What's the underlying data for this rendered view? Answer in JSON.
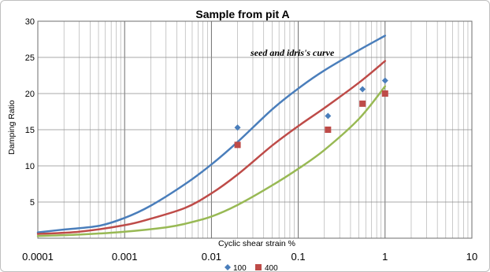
{
  "chart_data": {
    "type": "scatter",
    "title": "Sample from pit A",
    "xlabel": "Cyclic shear strain %",
    "ylabel": "Damping Ratio",
    "x_scale": "log",
    "xlim": [
      0.0001,
      10
    ],
    "ylim": [
      0,
      30
    ],
    "x_ticks": [
      "0.0001",
      "0.001",
      "0.01",
      "0.1",
      "1",
      "10"
    ],
    "y_ticks": [
      "5",
      "10",
      "15",
      "20",
      "25",
      "30"
    ],
    "grid": true,
    "legend_position": "bottom",
    "annotation": "seed and idris's curve",
    "curves": [
      {
        "color": "#4a7ebb",
        "points": [
          [
            0.0001,
            0.8
          ],
          [
            0.0002,
            1.2
          ],
          [
            0.0005,
            1.7
          ],
          [
            0.001,
            2.8
          ],
          [
            0.002,
            4.5
          ],
          [
            0.005,
            7.5
          ],
          [
            0.01,
            10.2
          ],
          [
            0.02,
            13.3
          ],
          [
            0.05,
            17.8
          ],
          [
            0.1,
            20.7
          ],
          [
            0.2,
            23.2
          ],
          [
            0.5,
            26.0
          ],
          [
            1,
            28.0
          ]
        ]
      },
      {
        "color": "#be4b48",
        "points": [
          [
            0.0001,
            0.6
          ],
          [
            0.0003,
            0.9
          ],
          [
            0.001,
            1.8
          ],
          [
            0.002,
            2.7
          ],
          [
            0.005,
            4.2
          ],
          [
            0.01,
            6.2
          ],
          [
            0.02,
            8.8
          ],
          [
            0.05,
            12.8
          ],
          [
            0.1,
            15.5
          ],
          [
            0.2,
            18.0
          ],
          [
            0.5,
            21.5
          ],
          [
            1,
            24.5
          ]
        ]
      },
      {
        "color": "#98b954",
        "points": [
          [
            0.0001,
            0.3
          ],
          [
            0.0003,
            0.5
          ],
          [
            0.001,
            0.9
          ],
          [
            0.003,
            1.5
          ],
          [
            0.005,
            2.0
          ],
          [
            0.01,
            3.0
          ],
          [
            0.02,
            4.6
          ],
          [
            0.05,
            7.3
          ],
          [
            0.1,
            9.6
          ],
          [
            0.2,
            12.2
          ],
          [
            0.5,
            16.5
          ],
          [
            1,
            21.0
          ]
        ]
      }
    ],
    "series": [
      {
        "name": "100",
        "color": "#4a7ebb",
        "marker": "diamond",
        "points": [
          [
            0.02,
            15.3
          ],
          [
            0.22,
            16.9
          ],
          [
            0.55,
            20.6
          ],
          [
            1.0,
            21.8
          ]
        ]
      },
      {
        "name": "400",
        "color": "#be4b48",
        "marker": "square",
        "points": [
          [
            0.02,
            12.9
          ],
          [
            0.22,
            15.0
          ],
          [
            0.55,
            18.6
          ],
          [
            1.0,
            20.0
          ]
        ]
      }
    ]
  }
}
